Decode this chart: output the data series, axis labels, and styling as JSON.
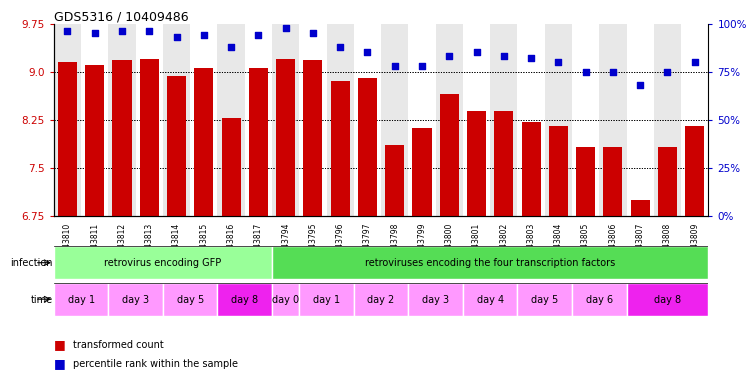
{
  "title": "GDS5316 / 10409486",
  "samples": [
    "GSM943810",
    "GSM943811",
    "GSM943812",
    "GSM943813",
    "GSM943814",
    "GSM943815",
    "GSM943816",
    "GSM943817",
    "GSM943794",
    "GSM943795",
    "GSM943796",
    "GSM943797",
    "GSM943798",
    "GSM943799",
    "GSM943800",
    "GSM943801",
    "GSM943802",
    "GSM943803",
    "GSM943804",
    "GSM943805",
    "GSM943806",
    "GSM943807",
    "GSM943808",
    "GSM943809"
  ],
  "transformed_counts": [
    9.15,
    9.1,
    9.18,
    9.2,
    8.93,
    9.05,
    8.28,
    9.05,
    9.2,
    9.18,
    8.85,
    8.9,
    7.85,
    8.12,
    8.65,
    8.38,
    8.38,
    8.22,
    8.15,
    7.82,
    7.82,
    7.0,
    7.82,
    8.15
  ],
  "percentile_ranks": [
    96,
    95,
    96,
    96,
    93,
    94,
    88,
    94,
    98,
    95,
    88,
    85,
    78,
    78,
    83,
    85,
    83,
    82,
    80,
    75,
    75,
    68,
    75,
    80
  ],
  "ylim_left": [
    6.75,
    9.75
  ],
  "ylim_right": [
    0,
    100
  ],
  "yticks_left": [
    6.75,
    7.5,
    8.25,
    9.0,
    9.75
  ],
  "yticks_right": [
    0,
    25,
    50,
    75,
    100
  ],
  "ytick_labels_right": [
    "0%",
    "25%",
    "50%",
    "75%",
    "100%"
  ],
  "bar_color": "#cc0000",
  "dot_color": "#0000cc",
  "bar_bottom": 6.75,
  "infection_groups": [
    {
      "label": "retrovirus encoding GFP",
      "start": 0,
      "end": 8,
      "color": "#99ff99"
    },
    {
      "label": "retroviruses encoding the four transcription factors",
      "start": 8,
      "end": 24,
      "color": "#55dd55"
    }
  ],
  "time_groups": [
    {
      "label": "day 1",
      "start": 0,
      "end": 2,
      "color": "#ff99ff"
    },
    {
      "label": "day 3",
      "start": 2,
      "end": 4,
      "color": "#ff99ff"
    },
    {
      "label": "day 5",
      "start": 4,
      "end": 6,
      "color": "#ff99ff"
    },
    {
      "label": "day 8",
      "start": 6,
      "end": 8,
      "color": "#ee22ee"
    },
    {
      "label": "day 0",
      "start": 8,
      "end": 9,
      "color": "#ff99ff"
    },
    {
      "label": "day 1",
      "start": 9,
      "end": 11,
      "color": "#ff99ff"
    },
    {
      "label": "day 2",
      "start": 11,
      "end": 13,
      "color": "#ff99ff"
    },
    {
      "label": "day 3",
      "start": 13,
      "end": 15,
      "color": "#ff99ff"
    },
    {
      "label": "day 4",
      "start": 15,
      "end": 17,
      "color": "#ff99ff"
    },
    {
      "label": "day 5",
      "start": 17,
      "end": 19,
      "color": "#ff99ff"
    },
    {
      "label": "day 6",
      "start": 19,
      "end": 21,
      "color": "#ff99ff"
    },
    {
      "label": "day 8",
      "start": 21,
      "end": 24,
      "color": "#ee22ee"
    }
  ],
  "grid_color": "#888888",
  "background_color": "#ffffff",
  "label_color_left": "#cc0000",
  "label_color_right": "#0000cc"
}
